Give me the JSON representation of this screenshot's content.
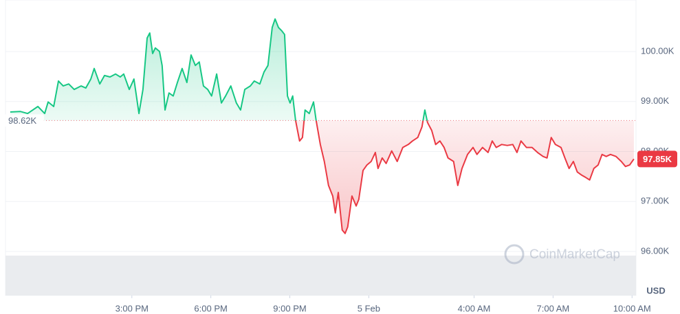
{
  "chart_data": {
    "type": "line",
    "x": [
      10.38,
      10.77,
      11.04,
      11.43,
      11.69,
      11.82,
      12.03,
      12.21,
      12.39,
      12.6,
      12.81,
      13.07,
      13.25,
      13.44,
      13.57,
      13.78,
      13.96,
      14.17,
      14.38,
      14.56,
      14.69,
      14.9,
      15.08,
      15.27,
      15.42,
      15.58,
      15.68,
      15.79,
      15.89,
      16.05,
      16.15,
      16.26,
      16.41,
      16.57,
      16.73,
      16.91,
      17.09,
      17.25,
      17.41,
      17.56,
      17.72,
      17.88,
      18.03,
      18.22,
      18.4,
      18.56,
      18.76,
      18.97,
      19.13,
      19.29,
      19.5,
      19.65,
      19.86,
      20.02,
      20.17,
      20.33,
      20.44,
      20.57,
      20.7,
      20.8,
      20.91,
      21.01,
      21.11,
      21.22,
      21.37,
      21.48,
      21.58,
      21.74,
      21.9,
      22.0,
      22.16,
      22.31,
      22.47,
      22.63,
      22.73,
      22.84,
      22.99,
      23.1,
      23.2,
      23.36,
      23.52,
      23.62,
      23.78,
      23.93,
      24.09,
      24.25,
      24.35,
      24.51,
      24.66,
      24.87,
      25.08,
      25.29,
      25.5,
      25.66,
      25.86,
      26.02,
      26.13,
      26.23,
      26.39,
      26.54,
      26.7,
      26.86,
      27.01,
      27.22,
      27.38,
      27.54,
      27.75,
      27.96,
      28.11,
      28.32,
      28.53,
      28.69,
      28.84,
      29.05,
      29.26,
      29.47,
      29.63,
      29.78,
      29.99,
      30.2,
      30.41,
      30.62,
      30.77,
      30.93,
      31.09,
      31.3,
      31.45,
      31.61,
      31.77,
      31.92,
      32.08,
      32.24,
      32.39,
      32.55,
      32.71,
      32.86,
      33.02,
      33.18,
      33.39,
      33.59,
      33.75,
      33.91,
      34.07
    ],
    "series": [
      {
        "name": "BTC",
        "color_up": "#16c784",
        "color_down": "#ea3943",
        "values": [
          98790,
          98800,
          98760,
          98900,
          98760,
          98990,
          98900,
          99410,
          99310,
          99350,
          99240,
          99310,
          99270,
          99450,
          99660,
          99350,
          99520,
          99490,
          99550,
          99490,
          99550,
          99240,
          99450,
          98760,
          99240,
          100270,
          100370,
          99960,
          100070,
          100000,
          99720,
          98830,
          99170,
          99110,
          99380,
          99660,
          99380,
          99930,
          99720,
          99790,
          99310,
          99240,
          99110,
          99550,
          98970,
          99110,
          99310,
          98970,
          98830,
          99240,
          99310,
          99410,
          99350,
          99590,
          99720,
          100480,
          100650,
          100480,
          100410,
          100340,
          99110,
          98970,
          99110,
          98620,
          98210,
          98280,
          98830,
          98760,
          98990,
          98620,
          98140,
          97800,
          97320,
          97110,
          96770,
          97180,
          96430,
          96360,
          96490,
          97110,
          96910,
          97040,
          97620,
          97730,
          97800,
          97980,
          97660,
          97870,
          97760,
          98010,
          97800,
          98080,
          98140,
          98210,
          98280,
          98490,
          98830,
          98580,
          98420,
          98140,
          98210,
          98080,
          97870,
          97800,
          97320,
          97660,
          97940,
          98080,
          97940,
          98080,
          97980,
          98210,
          98080,
          98140,
          98120,
          98140,
          97980,
          98210,
          98080,
          98080,
          97980,
          97900,
          97870,
          98280,
          98140,
          98080,
          97870,
          97660,
          97800,
          97590,
          97530,
          97480,
          97430,
          97660,
          97730,
          97940,
          97900,
          97940,
          97900,
          97800,
          97700,
          97730,
          97850
        ]
      }
    ],
    "baseline": {
      "value": 98620,
      "label": "98.62K"
    },
    "last_price": {
      "value": 97850,
      "label": "97.85K"
    },
    "xlim": [
      10.2,
      34.15
    ],
    "xticks": [
      {
        "value": 15,
        "label": "3:00 PM"
      },
      {
        "value": 18,
        "label": "6:00 PM"
      },
      {
        "value": 21,
        "label": "9:00 PM"
      },
      {
        "value": 24,
        "label": "5 Feb"
      },
      {
        "value": 28,
        "label": "4:00 AM"
      },
      {
        "value": 31,
        "label": "7:00 AM"
      },
      {
        "value": 34,
        "label": "10:00 AM"
      }
    ],
    "ylim": [
      95120,
      101030
    ],
    "yticks": [
      {
        "value": 96000,
        "label": "96.00K"
      },
      {
        "value": 97000,
        "label": "97.00K"
      },
      {
        "value": 98000,
        "label": "98.00K"
      },
      {
        "value": 99000,
        "label": "99.00K"
      },
      {
        "value": 100000,
        "label": "100.00K"
      }
    ],
    "y_unit": "USD",
    "watermark": "CoinMarketCap",
    "grid": true
  }
}
